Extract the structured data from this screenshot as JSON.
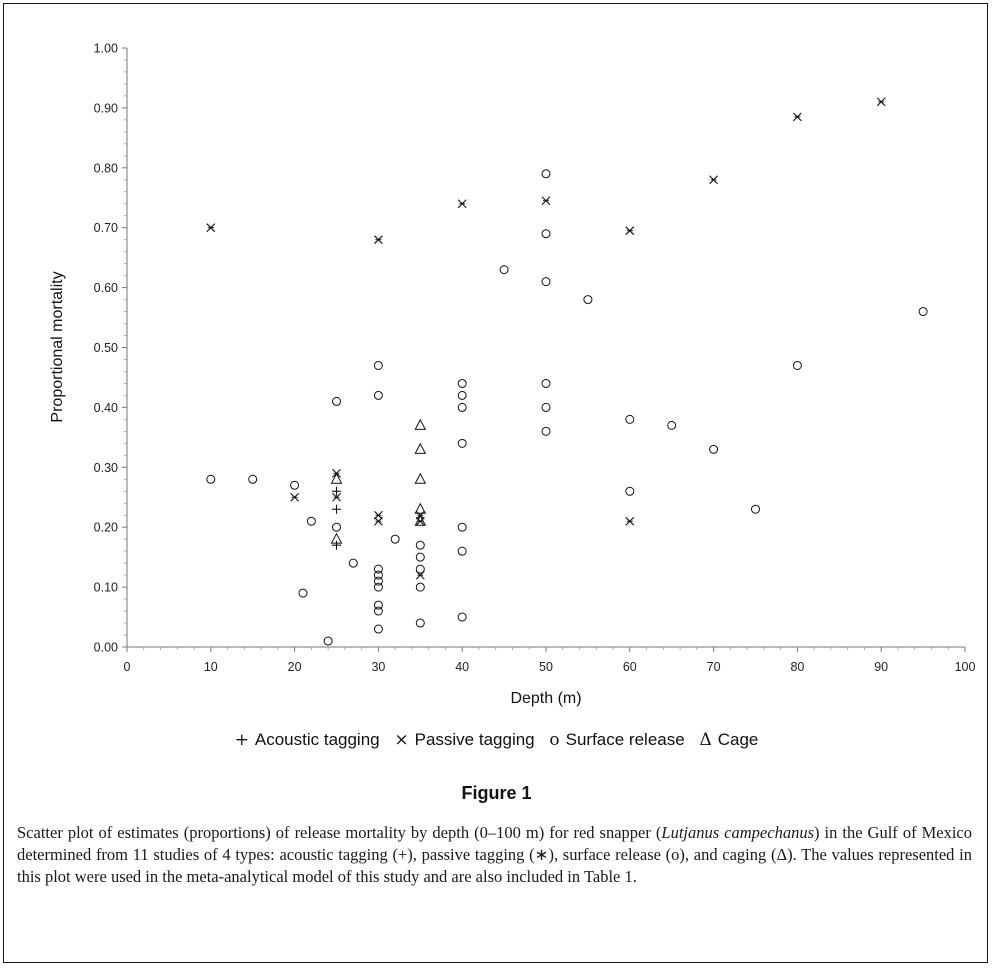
{
  "chart_data": {
    "type": "scatter",
    "xlabel": "Depth (m)",
    "ylabel": "Proportional mortality",
    "xlim": [
      0,
      100
    ],
    "ylim": [
      0,
      1
    ],
    "x_ticks": [
      "0",
      "10",
      "20",
      "30",
      "40",
      "50",
      "60",
      "70",
      "80",
      "90",
      "100"
    ],
    "y_ticks": [
      "0.00",
      "0.10",
      "0.20",
      "0.30",
      "0.40",
      "0.50",
      "0.60",
      "0.70",
      "0.80",
      "0.90",
      "1.00"
    ],
    "grid": false,
    "legend_position": "bottom",
    "series": [
      {
        "name": "Acoustic tagging",
        "symbol": "+",
        "points": [
          [
            25,
            0.26
          ],
          [
            25,
            0.23
          ],
          [
            25,
            0.17
          ]
        ]
      },
      {
        "name": "Passive tagging",
        "symbol": "×",
        "points": [
          [
            10,
            0.7
          ],
          [
            20,
            0.25
          ],
          [
            25,
            0.29
          ],
          [
            25,
            0.25
          ],
          [
            30,
            0.68
          ],
          [
            30,
            0.22
          ],
          [
            30,
            0.21
          ],
          [
            35,
            0.22
          ],
          [
            35,
            0.21
          ],
          [
            35,
            0.12
          ],
          [
            40,
            0.74
          ],
          [
            50,
            0.745
          ],
          [
            60,
            0.695
          ],
          [
            60,
            0.21
          ],
          [
            70,
            0.78
          ],
          [
            80,
            0.885
          ],
          [
            90,
            0.91
          ]
        ]
      },
      {
        "name": "Surface release",
        "symbol": "o",
        "points": [
          [
            10,
            0.28
          ],
          [
            15,
            0.28
          ],
          [
            20,
            0.27
          ],
          [
            21,
            0.09
          ],
          [
            22,
            0.21
          ],
          [
            24,
            0.01
          ],
          [
            25,
            0.41
          ],
          [
            25,
            0.2
          ],
          [
            27,
            0.14
          ],
          [
            30,
            0.47
          ],
          [
            30,
            0.42
          ],
          [
            30,
            0.13
          ],
          [
            30,
            0.12
          ],
          [
            30,
            0.11
          ],
          [
            30,
            0.1
          ],
          [
            30,
            0.07
          ],
          [
            30,
            0.06
          ],
          [
            30,
            0.03
          ],
          [
            32,
            0.18
          ],
          [
            35,
            0.17
          ],
          [
            35,
            0.15
          ],
          [
            35,
            0.13
          ],
          [
            35,
            0.1
          ],
          [
            35,
            0.04
          ],
          [
            40,
            0.44
          ],
          [
            40,
            0.42
          ],
          [
            40,
            0.4
          ],
          [
            40,
            0.34
          ],
          [
            40,
            0.2
          ],
          [
            40,
            0.16
          ],
          [
            40,
            0.05
          ],
          [
            45,
            0.63
          ],
          [
            50,
            0.79
          ],
          [
            50,
            0.69
          ],
          [
            50,
            0.61
          ],
          [
            50,
            0.44
          ],
          [
            50,
            0.4
          ],
          [
            50,
            0.36
          ],
          [
            55,
            0.58
          ],
          [
            60,
            0.38
          ],
          [
            60,
            0.26
          ],
          [
            65,
            0.37
          ],
          [
            70,
            0.33
          ],
          [
            75,
            0.23
          ],
          [
            80,
            0.47
          ],
          [
            95,
            0.56
          ]
        ]
      },
      {
        "name": "Cage",
        "symbol": "Δ",
        "points": [
          [
            25,
            0.28
          ],
          [
            25,
            0.18
          ],
          [
            35,
            0.37
          ],
          [
            35,
            0.33
          ],
          [
            35,
            0.28
          ],
          [
            35,
            0.23
          ],
          [
            35,
            0.21
          ]
        ]
      }
    ]
  },
  "legend": {
    "items": [
      {
        "symbol": "+",
        "label": "Acoustic tagging"
      },
      {
        "symbol": "×",
        "label": "Passive tagging"
      },
      {
        "symbol": "o",
        "label": "Surface release"
      },
      {
        "symbol": "Δ",
        "label": "Cage"
      }
    ]
  },
  "figure": {
    "title": "Figure 1",
    "caption": {
      "part1": "Scatter plot of estimates (proportions) of release mortality by depth (0–100 m) for red snapper (",
      "species": "Lutjanus campechanus",
      "part2": ") in the Gulf of Mexico determined from 11 studies of 4 types: acoustic tagging (+), passive tagging (∗), surface release (o), and caging (Δ). The values represented in this plot were used in the meta-analytical model of this study and are also included in Table 1."
    }
  }
}
